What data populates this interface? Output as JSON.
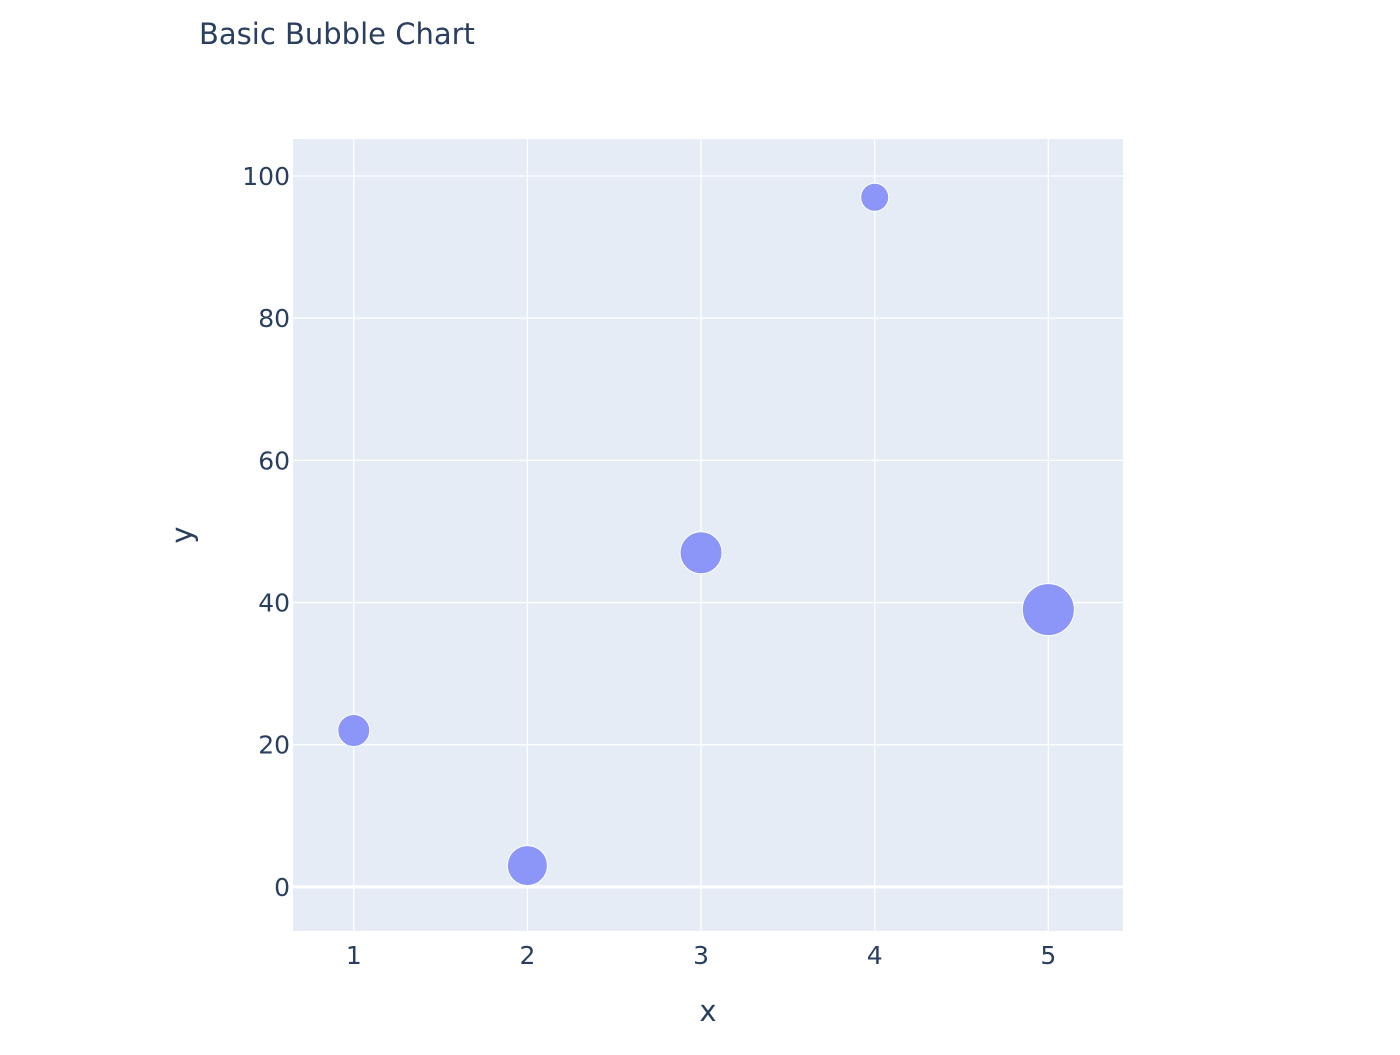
{
  "chart_data": {
    "type": "scatter",
    "title": "Basic Bubble Chart",
    "xlabel": "x",
    "ylabel": "y",
    "x": [
      1,
      2,
      3,
      4,
      5
    ],
    "y": [
      22,
      3,
      47,
      97,
      39
    ],
    "sizes": [
      16,
      20,
      21,
      14,
      26
    ],
    "xlim": [
      0.65,
      5.43
    ],
    "ylim": [
      -6.2,
      105.2
    ],
    "xticks": [
      1,
      2,
      3,
      4,
      5
    ],
    "yticks": [
      0,
      20,
      40,
      60,
      80,
      100
    ],
    "grid": true,
    "colors": {
      "marker": "#8c96f8",
      "plot_background": "#e5ecf6",
      "grid": "#ffffff",
      "text": "#2a3f5f"
    }
  }
}
